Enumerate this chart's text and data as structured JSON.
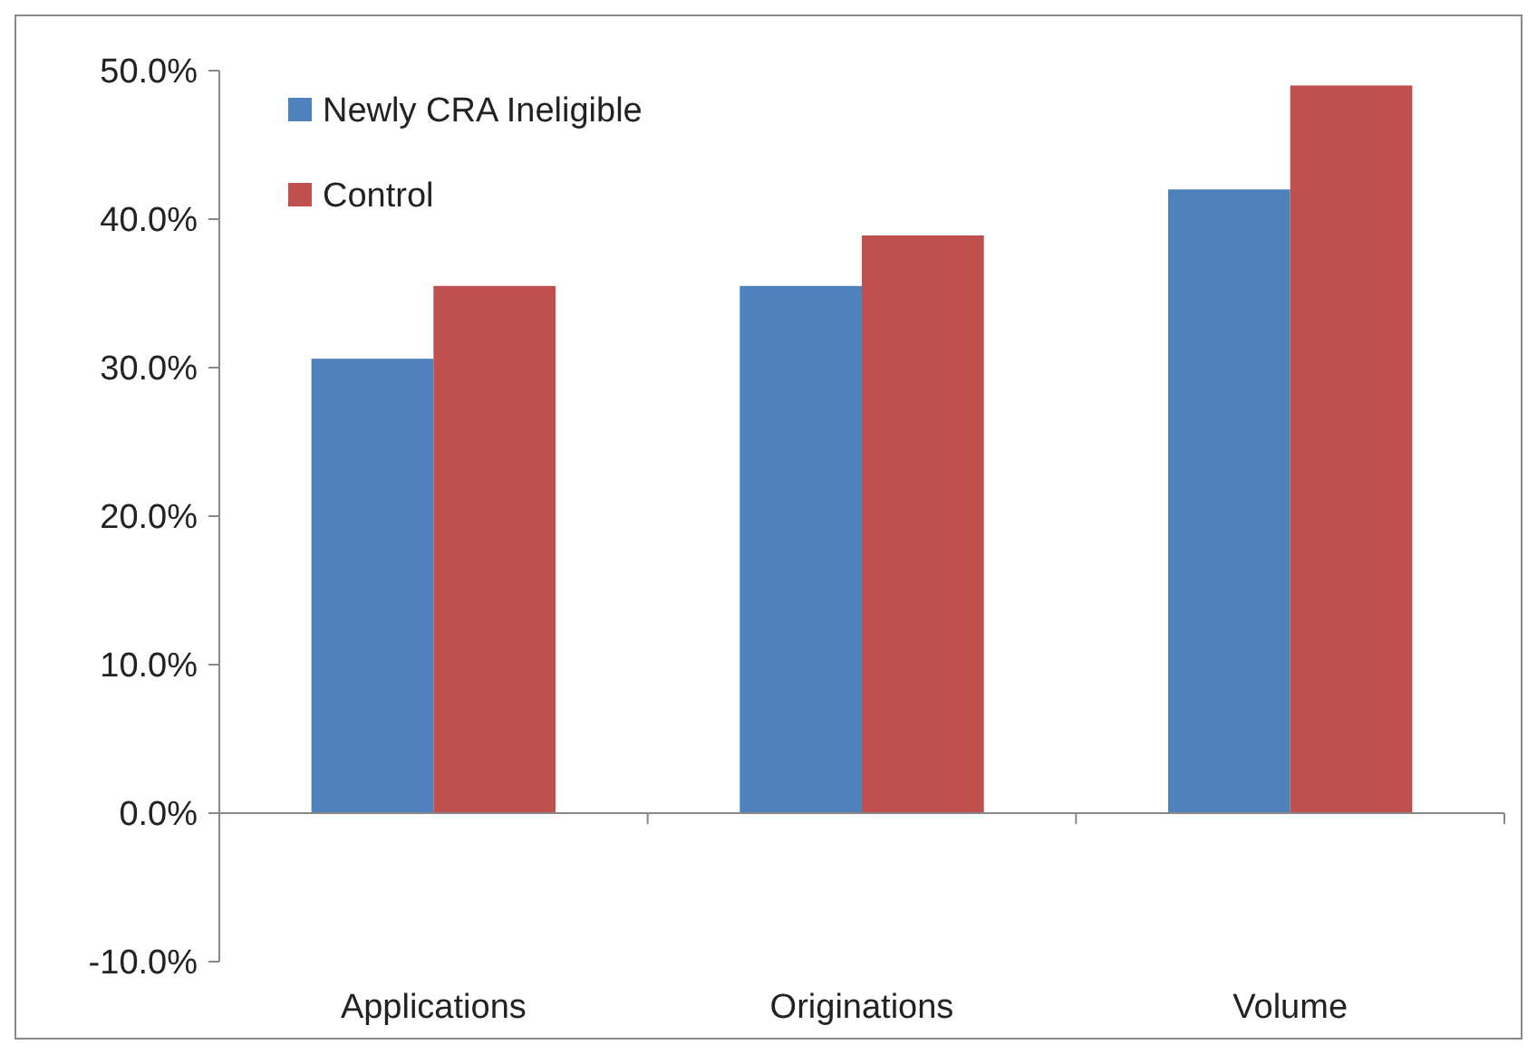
{
  "chart_data": {
    "type": "bar",
    "categories": [
      "Applications",
      "Originations",
      "Volume"
    ],
    "series": [
      {
        "name": "Newly CRA Ineligible",
        "color": "#4f81bd",
        "values": [
          30.6,
          35.5,
          42.0
        ]
      },
      {
        "name": "Control",
        "color": "#c0504d",
        "values": [
          35.5,
          38.9,
          49.0
        ]
      }
    ],
    "ylim": [
      -10,
      50
    ],
    "yticks": [
      {
        "value": -10,
        "label": "-10.0%"
      },
      {
        "value": 0,
        "label": "0.0%"
      },
      {
        "value": 10,
        "label": "10.0%"
      },
      {
        "value": 20,
        "label": "20.0%"
      },
      {
        "value": 30,
        "label": "30.0%"
      },
      {
        "value": 40,
        "label": "40.0%"
      },
      {
        "value": 50,
        "label": "50.0%"
      }
    ],
    "legend": "top left"
  }
}
